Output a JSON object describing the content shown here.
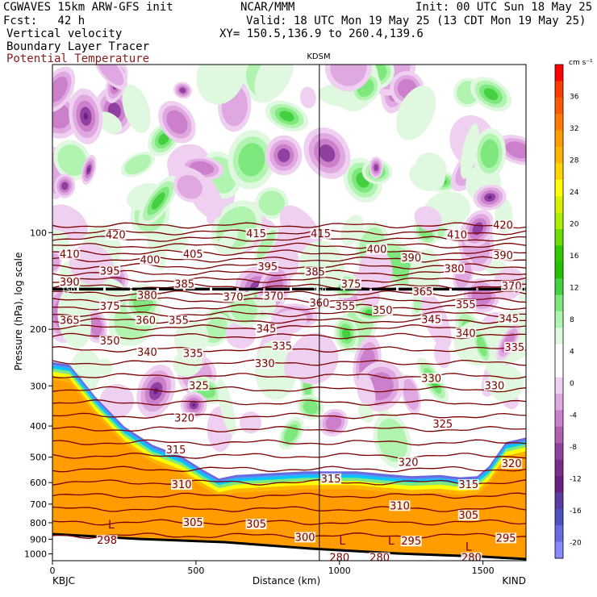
{
  "header": {
    "line1_left": "CGWAVES 15km ARW-GFS init",
    "line1_center": "NCAR/MMM",
    "line1_right": "Init: 00 UTC Sun 18 May 25",
    "line2_left": "Fcst:   42 h",
    "line2_right": "Valid: 18 UTC Mon 19 May 25 (13 CDT Mon 19 May 25)",
    "line3_left": "Vertical velocity",
    "line3_right": "XY= 150.5,136.9 to 260.4,139.6",
    "line4_left": "Boundary Layer Tracer",
    "line5_left": "Potential Temperature"
  },
  "colors": {
    "theta_contour": "#7a0000",
    "title_dark_red": "#8b1a1a",
    "terrain": "#000000"
  },
  "chart_data": {
    "type": "heatmap",
    "title": "KDSM",
    "xlabel": "Distance (km)",
    "ylabel": "Pressure (hPa), log scale",
    "x_range": [
      0,
      1650
    ],
    "y_range_hpa": [
      1050,
      30
    ],
    "y_log": true,
    "x_ticks": [
      "0",
      "500",
      "1000",
      "1500"
    ],
    "x_tick_values": [
      0,
      500,
      1000,
      1500
    ],
    "y_ticks": [
      "100",
      "200",
      "300",
      "400",
      "500",
      "600",
      "700",
      "800",
      "900",
      "1000"
    ],
    "y_tick_values": [
      100,
      200,
      300,
      400,
      500,
      600,
      700,
      800,
      900,
      1000
    ],
    "x_endpoint_labels": [
      "KBJC",
      "KIND"
    ],
    "station_marker_km": 930,
    "tropopause_label": "150",
    "colorbar": {
      "units_label": "cm s⁻¹",
      "tick_labels": [
        "36",
        "32",
        "28",
        "24",
        "20",
        "16",
        "12",
        "8",
        "4",
        "0",
        "-4",
        "-8",
        "-12",
        "-16",
        "-20"
      ],
      "tick_values": [
        36,
        32,
        28,
        24,
        20,
        16,
        12,
        8,
        4,
        0,
        -4,
        -8,
        -12,
        -16,
        -20
      ],
      "colors": [
        "#ff0000",
        "#ff3b00",
        "#ff5a00",
        "#ff7a00",
        "#ff9c00",
        "#ffb400",
        "#ffd400",
        "#ffff00",
        "#d8f000",
        "#aaee00",
        "#6cdc00",
        "#30c800",
        "#22c400",
        "#44d040",
        "#7ee87e",
        "#b0f4b0",
        "#dff8df",
        "#ffffff",
        "#ffffff",
        "#f0d0f0",
        "#e0a8e0",
        "#cc80cc",
        "#b060b0",
        "#9040a0",
        "#7a2c8a",
        "#6a2080",
        "#5a3ca0",
        "#5050c0",
        "#6a6ae0",
        "#8888ff"
      ]
    },
    "theta_contours": [
      {
        "label": "420",
        "x_km": 220,
        "p": 102
      },
      {
        "label": "415",
        "x_km": 710,
        "p": 101
      },
      {
        "label": "415",
        "x_km": 935,
        "p": 101
      },
      {
        "label": "420",
        "x_km": 1570,
        "p": 95
      },
      {
        "label": "410",
        "x_km": 60,
        "p": 117
      },
      {
        "label": "400",
        "x_km": 340,
        "p": 122
      },
      {
        "label": "405",
        "x_km": 490,
        "p": 117
      },
      {
        "label": "410",
        "x_km": 1410,
        "p": 102
      },
      {
        "label": "400",
        "x_km": 1130,
        "p": 113
      },
      {
        "label": "390",
        "x_km": 1250,
        "p": 120
      },
      {
        "label": "390",
        "x_km": 1570,
        "p": 118
      },
      {
        "label": "380",
        "x_km": 1400,
        "p": 130
      },
      {
        "label": "395",
        "x_km": 200,
        "p": 132
      },
      {
        "label": "385",
        "x_km": 460,
        "p": 145
      },
      {
        "label": "395",
        "x_km": 750,
        "p": 128
      },
      {
        "label": "385",
        "x_km": 915,
        "p": 133
      },
      {
        "label": "390",
        "x_km": 60,
        "p": 143
      },
      {
        "label": "375",
        "x_km": 1040,
        "p": 145
      },
      {
        "label": "370",
        "x_km": 1600,
        "p": 147
      },
      {
        "label": "380",
        "x_km": 330,
        "p": 157
      },
      {
        "label": "370",
        "x_km": 630,
        "p": 159
      },
      {
        "label": "370",
        "x_km": 770,
        "p": 158
      },
      {
        "label": "365",
        "x_km": 1290,
        "p": 153
      },
      {
        "label": "375",
        "x_km": 200,
        "p": 170
      },
      {
        "label": "360",
        "x_km": 930,
        "p": 166
      },
      {
        "label": "355",
        "x_km": 1020,
        "p": 170
      },
      {
        "label": "350",
        "x_km": 1150,
        "p": 175
      },
      {
        "label": "355",
        "x_km": 1440,
        "p": 168
      },
      {
        "label": "365",
        "x_km": 60,
        "p": 188
      },
      {
        "label": "360",
        "x_km": 325,
        "p": 188
      },
      {
        "label": "355",
        "x_km": 440,
        "p": 188
      },
      {
        "label": "345",
        "x_km": 1320,
        "p": 187
      },
      {
        "label": "345",
        "x_km": 1590,
        "p": 186
      },
      {
        "label": "345",
        "x_km": 745,
        "p": 200
      },
      {
        "label": "340",
        "x_km": 1440,
        "p": 206
      },
      {
        "label": "350",
        "x_km": 200,
        "p": 218
      },
      {
        "label": "335",
        "x_km": 800,
        "p": 226
      },
      {
        "label": "340",
        "x_km": 330,
        "p": 236
      },
      {
        "label": "335",
        "x_km": 490,
        "p": 238
      },
      {
        "label": "335",
        "x_km": 1610,
        "p": 228
      },
      {
        "label": "330",
        "x_km": 740,
        "p": 256
      },
      {
        "label": "330",
        "x_km": 1320,
        "p": 285
      },
      {
        "label": "330",
        "x_km": 1540,
        "p": 300
      },
      {
        "label": "325",
        "x_km": 510,
        "p": 300
      },
      {
        "label": "320",
        "x_km": 460,
        "p": 378
      },
      {
        "label": "325",
        "x_km": 1360,
        "p": 395
      },
      {
        "label": "315",
        "x_km": 430,
        "p": 475
      },
      {
        "label": "320",
        "x_km": 1240,
        "p": 520
      },
      {
        "label": "320",
        "x_km": 1600,
        "p": 525
      },
      {
        "label": "310",
        "x_km": 450,
        "p": 610
      },
      {
        "label": "315",
        "x_km": 970,
        "p": 585
      },
      {
        "label": "315",
        "x_km": 1450,
        "p": 610
      },
      {
        "label": "310",
        "x_km": 1210,
        "p": 710
      },
      {
        "label": "305",
        "x_km": 490,
        "p": 800
      },
      {
        "label": "305",
        "x_km": 710,
        "p": 810
      },
      {
        "label": "305",
        "x_km": 1450,
        "p": 760
      },
      {
        "label": "300",
        "x_km": 880,
        "p": 890
      },
      {
        "label": "298",
        "x_km": 190,
        "p": 910
      },
      {
        "label": "295",
        "x_km": 1250,
        "p": 915
      },
      {
        "label": "295",
        "x_km": 1580,
        "p": 895
      },
      {
        "label": "280",
        "x_km": 1000,
        "p": 1030
      },
      {
        "label": "280",
        "x_km": 1140,
        "p": 1030
      },
      {
        "label": "280",
        "x_km": 1460,
        "p": 1030
      }
    ],
    "tracer_labels": [
      {
        "label": "L",
        "x_km": 205,
        "p": 810
      },
      {
        "label": "L",
        "x_km": 1010,
        "p": 910
      },
      {
        "label": "L",
        "x_km": 1180,
        "p": 910
      },
      {
        "label": "L",
        "x_km": 1450,
        "p": 950
      }
    ]
  }
}
